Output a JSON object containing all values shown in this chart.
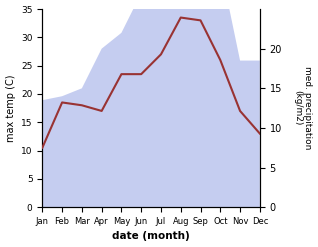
{
  "months": [
    "Jan",
    "Feb",
    "Mar",
    "Apr",
    "May",
    "Jun",
    "Jul",
    "Aug",
    "Sep",
    "Oct",
    "Nov",
    "Dec"
  ],
  "temp_max": [
    10.5,
    18.5,
    18.0,
    17.0,
    23.5,
    23.5,
    27.0,
    33.5,
    33.0,
    26.0,
    17.0,
    13.0
  ],
  "precip_mm": [
    13.5,
    14.0,
    15.0,
    20.0,
    22.0,
    27.0,
    35.0,
    32.0,
    30.5,
    30.5,
    18.5,
    18.5
  ],
  "temp_color": "#993333",
  "precip_fill_color": "#c5cdf0",
  "bg_color": "#ffffff",
  "xlabel": "date (month)",
  "ylabel_left": "max temp (C)",
  "ylabel_right": "med. precipitation\n(kg/m2)",
  "ylim_left": [
    0,
    35
  ],
  "ylim_right": [
    0,
    25
  ],
  "yticks_left": [
    0,
    5,
    10,
    15,
    20,
    25,
    30,
    35
  ],
  "yticks_right": [
    0,
    5,
    10,
    15,
    20
  ],
  "figsize": [
    3.18,
    2.47
  ],
  "dpi": 100
}
